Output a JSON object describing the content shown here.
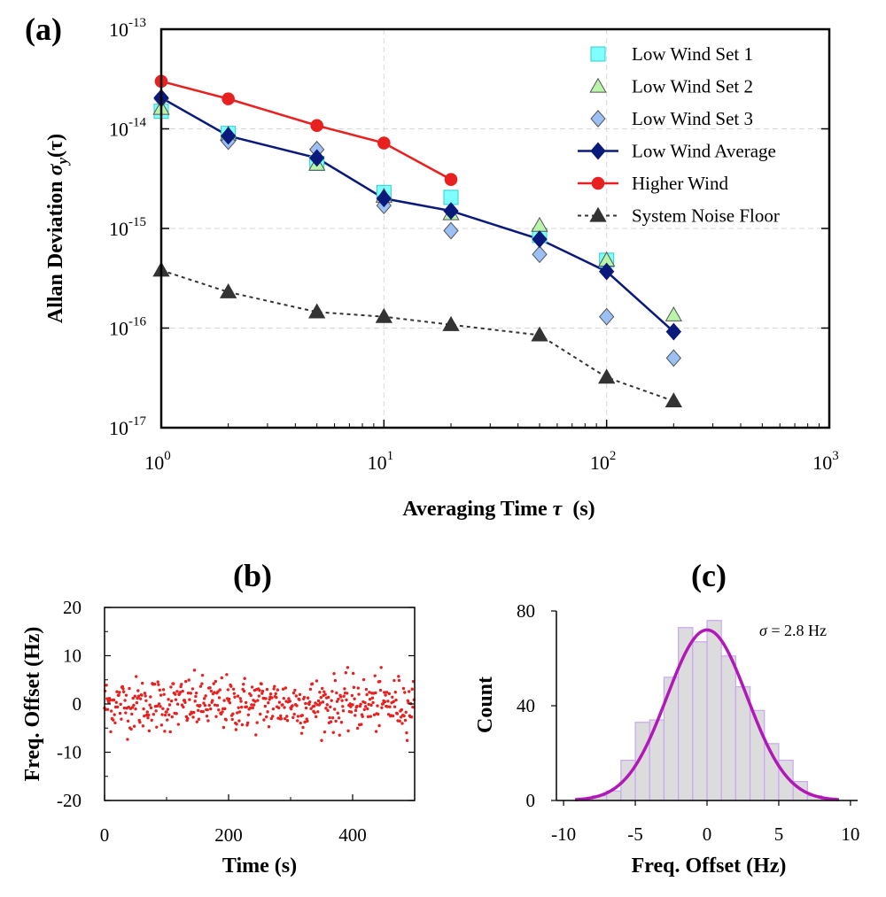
{
  "chart_data": [
    {
      "panel": "(a)",
      "type": "line",
      "xlabel": "Averaging Time τ  (s)",
      "ylabel": "Allan Deviation σy(τ)",
      "xscale": "log",
      "yscale": "log",
      "xlim": [
        1,
        1000
      ],
      "ylim": [
        1e-17,
        1e-13
      ],
      "x_ticks": [
        "10^0",
        "10^1",
        "10^2",
        "10^3"
      ],
      "y_ticks": [
        "10^-17",
        "10^-16",
        "10^-15",
        "10^-14",
        "10^-13"
      ],
      "grid": true,
      "legend_position": "top-right",
      "series": [
        {
          "name": "Low Wind Set 1",
          "marker": "square",
          "color": "#7FFFFF",
          "line": false,
          "x": [
            1,
            2,
            5,
            10,
            20,
            50,
            100
          ],
          "y": [
            1.5e-14,
            9e-15,
            4.5e-15,
            2.3e-15,
            2.05e-15,
            8.5e-16,
            4.8e-16
          ]
        },
        {
          "name": "Low Wind Set 2",
          "marker": "triangle",
          "color": "#B8F5A8",
          "line": false,
          "x": [
            1,
            2,
            5,
            10,
            20,
            50,
            100,
            200
          ],
          "y": [
            1.6e-14,
            8.8e-15,
            4.4e-15,
            2.1e-15,
            1.4e-15,
            1.07e-15,
            4.8e-16,
            1.35e-16
          ]
        },
        {
          "name": "Low Wind Set 3",
          "marker": "diamond",
          "color": "#9CC0F5",
          "line": false,
          "x": [
            1,
            2,
            5,
            10,
            20,
            50,
            100,
            200
          ],
          "y": [
            2e-14,
            7.5e-15,
            6.2e-15,
            1.7e-15,
            9.5e-16,
            5.5e-16,
            1.3e-16,
            5e-17
          ]
        },
        {
          "name": "Low Wind Average",
          "marker": "diamond",
          "color": "#0A1A7A",
          "line": "solid",
          "x": [
            1,
            2,
            5,
            10,
            20,
            50,
            100,
            200
          ],
          "y": [
            2.05e-14,
            8.5e-15,
            5.1e-15,
            2e-15,
            1.5e-15,
            7.8e-16,
            3.7e-16,
            9.2e-17
          ]
        },
        {
          "name": "Higher Wind",
          "marker": "circle",
          "color": "#E82020",
          "line": "solid",
          "x": [
            1,
            2,
            5,
            10,
            20
          ],
          "y": [
            3e-14,
            2e-14,
            1.08e-14,
            7.2e-15,
            3.1e-15
          ]
        },
        {
          "name": "System Noise Floor",
          "marker": "triangle",
          "color": "#333333",
          "line": "dashed",
          "x": [
            1,
            2,
            5,
            10,
            20,
            50,
            100,
            200
          ],
          "y": [
            3.8e-16,
            2.3e-16,
            1.45e-16,
            1.3e-16,
            1.08e-16,
            8.5e-17,
            3.2e-17,
            1.85e-17
          ]
        }
      ]
    },
    {
      "panel": "(b)",
      "type": "scatter",
      "xlabel": "Time (s)",
      "ylabel": "Freq. Offset (Hz)",
      "xlim": [
        0,
        500
      ],
      "ylim": [
        -20,
        20
      ],
      "x_ticks": [
        "0",
        "200",
        "400"
      ],
      "y_ticks": [
        "20",
        "10",
        "0",
        "-10",
        "-20"
      ],
      "color": "#E82020",
      "n_points": 500,
      "sigma_hz": 2.8,
      "mean_hz": 0
    },
    {
      "panel": "(c)",
      "type": "bar",
      "xlabel": "Freq. Offset (Hz)",
      "ylabel": "Count",
      "xlim": [
        -10,
        10
      ],
      "ylim": [
        0,
        80
      ],
      "x_ticks": [
        "-10",
        "-5",
        "0",
        "5",
        "10"
      ],
      "y_ticks": [
        "80",
        "40",
        "0"
      ],
      "bin_width": 1,
      "bin_centers": [
        -9.5,
        -8.5,
        -7.5,
        -6.5,
        -5.5,
        -4.5,
        -3.5,
        -2.5,
        -1.5,
        -0.5,
        0.5,
        1.5,
        2.5,
        3.5,
        4.5,
        5.5,
        6.5,
        7.5,
        8.5,
        9.5
      ],
      "counts": [
        0,
        1,
        2,
        4,
        17,
        33,
        34,
        52,
        73,
        67,
        76,
        61,
        48,
        38,
        24,
        17,
        8,
        2,
        1,
        0
      ],
      "bar_color": "#DCDCDC",
      "bar_edge": "#C9A7F2",
      "fit": {
        "type": "gaussian",
        "amplitude": 72,
        "mean": 0,
        "sigma": 2.8,
        "color": "#B218B8"
      },
      "annotation": "σ = 2.8 Hz"
    }
  ],
  "labels": {
    "a": "(a)",
    "b": "(b)",
    "c": "(c)",
    "a_xlabel_text": "Averaging Time ",
    "a_xlabel_sym": "τ",
    "a_xlabel_unit": "  (s)",
    "a_ylabel_text": "Allan Deviation ",
    "a_ylabel_sym": "σ",
    "a_ylabel_sub": "y",
    "a_ylabel_arg": "(τ)",
    "b_xlabel": "Time (s)",
    "b_ylabel": "Freq. Offset (Hz)",
    "c_xlabel": "Freq. Offset (Hz)",
    "c_ylabel": "Count",
    "c_ann_sym": "σ",
    "c_ann_val": " = 2.8 Hz"
  },
  "a_ticks": {
    "x": [
      {
        "base": "10",
        "exp": "0"
      },
      {
        "base": "10",
        "exp": "1"
      },
      {
        "base": "10",
        "exp": "2"
      },
      {
        "base": "10",
        "exp": "3"
      }
    ],
    "y": [
      {
        "base": "10",
        "exp": "-13"
      },
      {
        "base": "10",
        "exp": "-14"
      },
      {
        "base": "10",
        "exp": "-15"
      },
      {
        "base": "10",
        "exp": "-16"
      },
      {
        "base": "10",
        "exp": "-17"
      }
    ]
  }
}
